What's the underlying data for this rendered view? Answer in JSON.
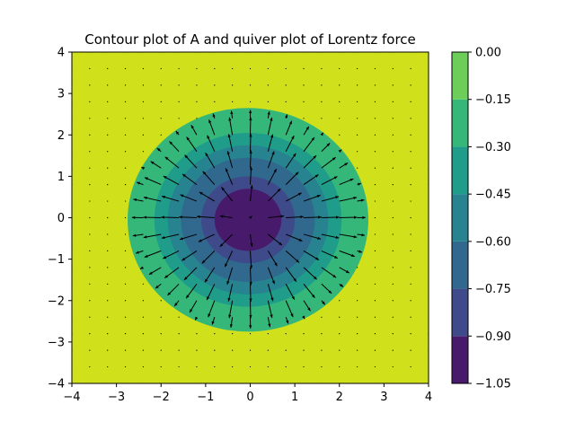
{
  "chart_data": {
    "type": "contour",
    "title": "Contour plot of A and quiver plot of Lorentz force",
    "xlabel": "",
    "ylabel": "",
    "xlim": [
      -4,
      4
    ],
    "ylim": [
      -4,
      4
    ],
    "x_ticks": [
      -4,
      -3,
      -2,
      -1,
      0,
      1,
      2,
      3,
      4
    ],
    "x_tick_labels": [
      "−4",
      "−3",
      "−2",
      "−1",
      "0",
      "1",
      "2",
      "3",
      "4"
    ],
    "y_ticks": [
      -4,
      -3,
      -2,
      -1,
      0,
      1,
      2,
      3,
      4
    ],
    "y_tick_labels": [
      "−4",
      "−3",
      "−2",
      "−1",
      "0",
      "1",
      "2",
      "3",
      "4"
    ],
    "grid": false,
    "contour_levels": [
      -1.05,
      -0.9,
      -0.75,
      -0.6,
      -0.45,
      -0.3,
      -0.15,
      0.0
    ],
    "contour_colors": [
      "#481a6c",
      "#3e4a89",
      "#31688e",
      "#26838f",
      "#1f9d8a",
      "#35b779",
      "#6cce59",
      "#d0e11c"
    ],
    "band_boundary_radii": [
      0.75,
      1.05,
      1.5,
      1.8,
      2.1,
      2.7
    ],
    "center": [
      -0.05,
      -0.05
    ],
    "colorbar": {
      "ticks": [
        0.0,
        -0.15,
        -0.3,
        -0.45,
        -0.6,
        -0.75,
        -0.9,
        -1.05
      ],
      "tick_labels": [
        "0.00",
        "−0.15",
        "−0.30",
        "−0.45",
        "−0.60",
        "−0.75",
        "−0.90",
        "−1.05"
      ]
    },
    "quiver": {
      "grid_start": -4,
      "grid_end": 4,
      "grid_step": 0.4,
      "field": "radially outward, strongest for radius 0.5–2.1, near zero outside radius 2.7",
      "color": "#000000"
    }
  }
}
